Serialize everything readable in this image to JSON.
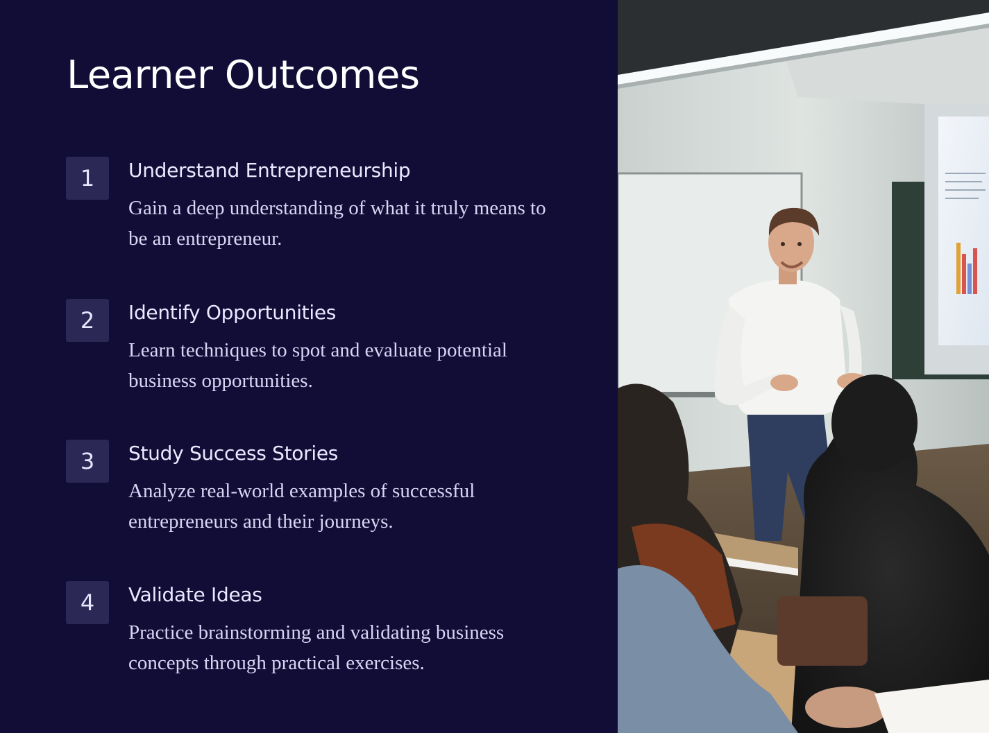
{
  "title": "Learner Outcomes",
  "outcomes": [
    {
      "number": "1",
      "heading": "Understand Entrepreneurship",
      "description": "Gain a deep understanding of what it truly means to be an entrepreneur."
    },
    {
      "number": "2",
      "heading": "Identify Opportunities",
      "description": "Learn techniques to spot and evaluate potential business opportunities."
    },
    {
      "number": "3",
      "heading": "Study Success Stories",
      "description": "Analyze real-world examples of successful entrepreneurs and their journeys."
    },
    {
      "number": "4",
      "heading": "Validate Ideas",
      "description": "Practice brainstorming and validating business concepts through practical exercises."
    }
  ],
  "colors": {
    "background": "#110d36",
    "number_box": "#2b2856",
    "title_text": "#ffffff",
    "body_text": "#d9d5f4"
  }
}
